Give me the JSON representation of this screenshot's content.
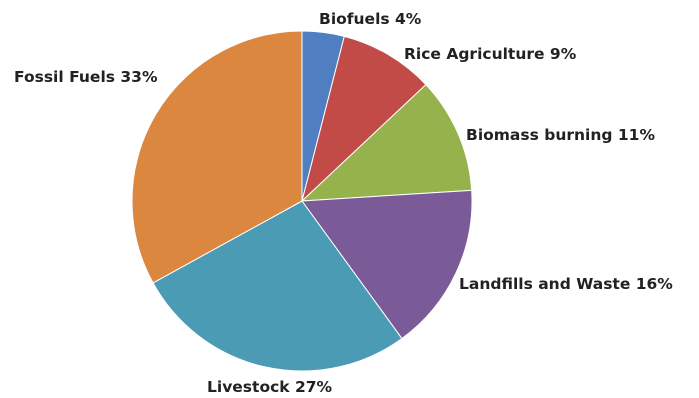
{
  "chart_data": {
    "type": "pie",
    "title": "",
    "slices": [
      {
        "name": "Biofuels",
        "value": 4,
        "label": "Biofuels 4%",
        "color": "#4f7fc0"
      },
      {
        "name": "Rice Agriculture",
        "value": 9,
        "label": "Rice Agriculture 9%",
        "color": "#c24b47"
      },
      {
        "name": "Biomass burning",
        "value": 11,
        "label": "Biomass burning 11%",
        "color": "#96b24d"
      },
      {
        "name": "Landfills and Waste",
        "value": 16,
        "label": "Landfills and Waste 16%",
        "color": "#7b5a98"
      },
      {
        "name": "Livestock",
        "value": 27,
        "label": "Livestock 27%",
        "color": "#4b9bb4"
      },
      {
        "name": "Fossil Fuels",
        "value": 33,
        "label": "Fossil Fuels 33%",
        "color": "#db8740"
      }
    ],
    "start": "12 o'clock",
    "direction": "clockwise",
    "legend": "none"
  }
}
